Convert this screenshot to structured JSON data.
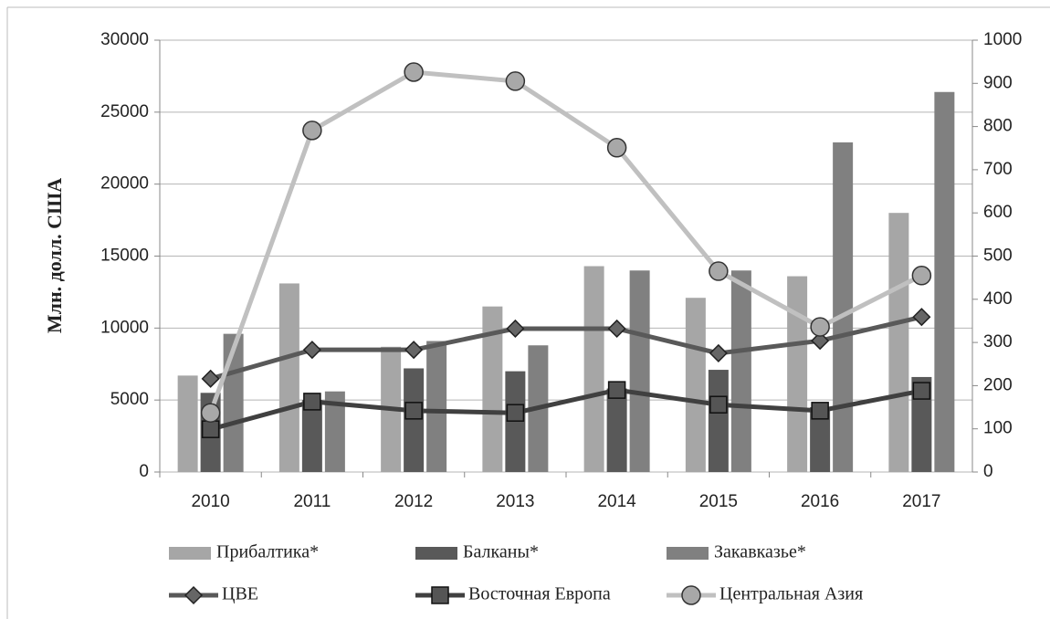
{
  "chart_data": {
    "type": "bar_line",
    "y_label": "Млн. долл. США",
    "categories": [
      "2010",
      "2011",
      "2012",
      "2013",
      "2014",
      "2015",
      "2016",
      "2017"
    ],
    "ylim": [
      0,
      30000
    ],
    "yticks": [
      0,
      5000,
      10000,
      15000,
      20000,
      25000,
      30000
    ],
    "y2lim": [
      0,
      1000
    ],
    "y2ticks": [
      0,
      100,
      200,
      300,
      400,
      500,
      600,
      700,
      800,
      900,
      1000
    ],
    "series": [
      {
        "name": "Прибалтика*",
        "kind": "bar",
        "color": "#a6a6a6",
        "values": [
          6700,
          13100,
          8700,
          11500,
          14300,
          12100,
          13600,
          18000
        ]
      },
      {
        "name": "Балканы*",
        "kind": "bar",
        "color": "#595959",
        "values": [
          5500,
          5000,
          7200,
          7000,
          5800,
          7100,
          4500,
          6600
        ]
      },
      {
        "name": "Закавказье*",
        "kind": "bar",
        "color": "#808080",
        "values": [
          9600,
          5600,
          9100,
          8800,
          14000,
          14000,
          22900,
          26400
        ]
      },
      {
        "name": "ЦВЕ",
        "kind": "line",
        "marker": "diamond",
        "axis": "y2",
        "color": "#595959",
        "values": [
          216,
          283,
          283,
          332,
          332,
          275,
          304,
          359
        ]
      },
      {
        "name": "Восточная Европа",
        "kind": "line",
        "marker": "square",
        "axis": "y2",
        "color": "#404040",
        "values": [
          99,
          163,
          142,
          137,
          190,
          156,
          142,
          188
        ]
      },
      {
        "name": "Центральная Азия",
        "kind": "line",
        "marker": "circle",
        "axis": "y2",
        "color": "#c0c0c0",
        "values": [
          137,
          791,
          926,
          905,
          751,
          465,
          336,
          455
        ]
      }
    ]
  }
}
